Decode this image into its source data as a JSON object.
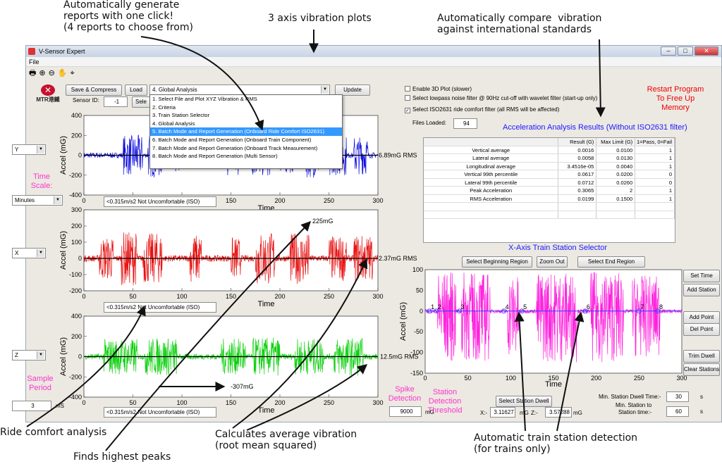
{
  "annotations": {
    "reports": "Automatically generate\nreports with one click!\n(4 reports to choose from)",
    "axis_plots": "3 axis vibration plots",
    "compare": "Automatically compare  vibration\nagainst international standards",
    "ride_comfort": "Ride comfort analysis",
    "peaks": "Finds highest peaks",
    "average": "Calculates average vibration\n(root mean squared)",
    "station_detection": "Automatic train station detection\n(for trains only)"
  },
  "window": {
    "title": "V-Sensor Expert",
    "menu_file": "File",
    "btn_min": "–",
    "btn_max": "□",
    "btn_close": "✕"
  },
  "logo": {
    "text": "MTR港鐵",
    "color": "#c8102e"
  },
  "controls": {
    "save_compress": "Save & Compress",
    "load": "Load",
    "report_select": "4. Global Analysis",
    "update": "Update",
    "sensor_id_label": "Sensor ID:",
    "sensor_id": "-1",
    "select_btn": "Sele"
  },
  "report_options": [
    "1. Select File and Plot XYZ Vibration & RMS",
    "2. Criteria",
    "3. Train Station Selector",
    "4. Global Analysis",
    "5. Batch Mode and Report Generation (Onboard Ride Comfort ISO2631)",
    "6. Batch Mode and Report Generation (Onboard Train Component)",
    "7. Batch Mode and Report Generation (Onboard Track Measurement)",
    "8. Batch Mode and Report Generation (Multi Sensor)"
  ],
  "left": {
    "axis_y": "Y",
    "axis_x": "X",
    "axis_z": "Z",
    "time_scale": "Time\nScale:",
    "minutes": "Minutes",
    "sample_period": "Sample\nPeriod",
    "sample_value": "3",
    "sample_unit": "mS"
  },
  "plots": {
    "ylabel": "Accel (mG)",
    "xlabel": "Time",
    "x_ticks": [
      "0",
      "50",
      "100",
      "150",
      "200",
      "250",
      "300"
    ],
    "y_ticks_top": [
      "400",
      "200",
      "0",
      "-200",
      "-400"
    ],
    "y_ticks_mid": [
      "300",
      "200",
      "100",
      "0",
      "-100",
      "-200"
    ],
    "y_ticks_bot": [
      "400",
      "200",
      "0",
      "-200",
      "-400"
    ],
    "comfort": "<0.315m/s2 Not Uncomfortable (ISO)",
    "rms_y": "6.89mG RMS",
    "rms_x": "2.37mG RMS",
    "rms_z": "12.5mG RMS",
    "peak_x": "225mG",
    "peak_z": "-307mG",
    "colors": {
      "y": "#1010e0",
      "x": "#e81010",
      "z": "#10d010"
    }
  },
  "right": {
    "enable_3d": "Enable 3D Plot (slower)",
    "lowpass": "Select lowpass noise filter @ 90Hz cut-off with wavelet filter (start-up only)",
    "iso_filter": "Select ISO2631 ride comfort filter (all RMS will be affected)",
    "files_loaded_label": "Files Loaded:",
    "files_loaded": "94",
    "restart": "Restart Program\nTo Free Up\nMemory",
    "results_title": "Acceleration Analysis Results (Without ISO2631 filter)",
    "station_title": "X-Axis Train Station Selector",
    "sel_begin": "Select Beginning Region",
    "zoom_out": "Zoom Out",
    "sel_end": "Select End Region",
    "set_time": "Set Time",
    "add_station": "Add Station",
    "add_point": "Add Point",
    "del_point": "Del Point",
    "trim_dwell": "Trim Dwell",
    "clear_stations": "Clear Stations",
    "spike": "Spike\nDetection",
    "threshold": "Station\nDetection\nThreshold",
    "spike_value": "9000",
    "mg": "mG",
    "select_dwell": "Select Station Dwell",
    "x_label": "X:-",
    "x_value": "3.11627",
    "z_label": "Z:-",
    "z_value": "3.57288",
    "min_dwell_label": "Min. Station Dwell Time:-",
    "min_dwell": "30",
    "min_station_label": "Min. Station to\nStation time:-",
    "min_station": "60",
    "s": "s",
    "station_ylabel": "Accel (mG)",
    "station_xlabel": "Time",
    "station_x_ticks": [
      "0",
      "50",
      "100",
      "150",
      "200",
      "250",
      "300"
    ],
    "station_y_ticks": [
      "100",
      "50",
      "0",
      "-50",
      "-100",
      "-150"
    ],
    "station_numbers": [
      "1",
      "2",
      "3",
      "4",
      "5",
      "6",
      "7",
      "8"
    ],
    "station_color": "#ff22dd"
  },
  "results": {
    "headers": [
      "",
      "Result (G)",
      "Max Limit (G)",
      "1=Pass, 0=Fail"
    ],
    "rows": [
      [
        "Vertical average",
        "0.0016",
        "0.0100",
        "1"
      ],
      [
        "Lateral average",
        "0.0058",
        "0.0130",
        "1"
      ],
      [
        "Longitudinal average",
        "3.4516e-05",
        "0.0040",
        "1"
      ],
      [
        "Vertical 99th percentile",
        "0.0617",
        "0.0200",
        "0"
      ],
      [
        "Lateral 99th percentile",
        "0.0712",
        "0.0260",
        "0"
      ],
      [
        "Peak Acceleration",
        "0.3065",
        "2",
        "1"
      ],
      [
        "RMS Acceleration",
        "0.0199",
        "0.1500",
        "1"
      ]
    ]
  }
}
